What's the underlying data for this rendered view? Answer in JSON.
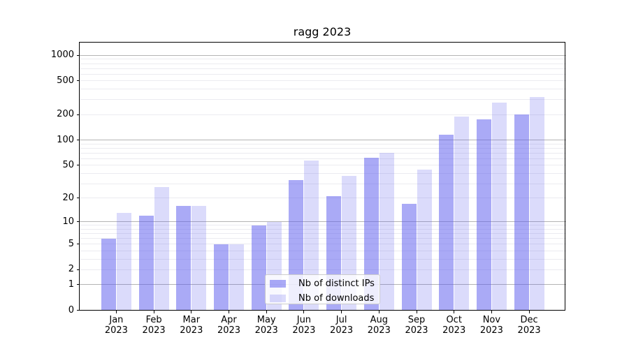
{
  "chart_data": {
    "type": "bar",
    "title": "ragg 2023",
    "categories": [
      "Jan",
      "Feb",
      "Mar",
      "Apr",
      "May",
      "Jun",
      "Jul",
      "Aug",
      "Sep",
      "Oct",
      "Nov",
      "Dec"
    ],
    "x_year_label": "2023",
    "series": [
      {
        "name": "Nb of distinct IPs",
        "key": "distinct-ips",
        "color": "rgba(92,92,237,0.52)",
        "values": [
          6,
          12,
          16,
          5,
          9,
          33,
          21,
          62,
          17,
          115,
          175,
          200
        ]
      },
      {
        "name": "Nb of downloads",
        "key": "downloads",
        "color": "rgba(92,92,237,0.22)",
        "values": [
          13,
          27,
          16,
          5,
          10,
          57,
          37,
          70,
          44,
          190,
          280,
          320
        ]
      }
    ],
    "xlabel": "",
    "ylabel": "",
    "yscale": "log1p",
    "ylim": [
      0,
      1430
    ],
    "y_ticks": [
      0,
      1,
      2,
      5,
      10,
      20,
      50,
      100,
      200,
      500,
      1000
    ],
    "y_major_gridlines": [
      1,
      10,
      100,
      1000
    ],
    "y_minor_gridlines": [
      2,
      3,
      4,
      5,
      6,
      7,
      8,
      9,
      20,
      30,
      40,
      50,
      60,
      70,
      80,
      90,
      200,
      300,
      400,
      500,
      600,
      700,
      800,
      900
    ],
    "grid": "on",
    "legend": {
      "position": "lower center",
      "entries": [
        "Nb of distinct IPs",
        "Nb of downloads"
      ]
    },
    "colors": {
      "bar_fill_base": "#5c5ced",
      "major_grid": "#b4b4b4",
      "minor_grid": "#ebebf0",
      "spine": "#000000",
      "legend_border": "#cccccc"
    }
  }
}
